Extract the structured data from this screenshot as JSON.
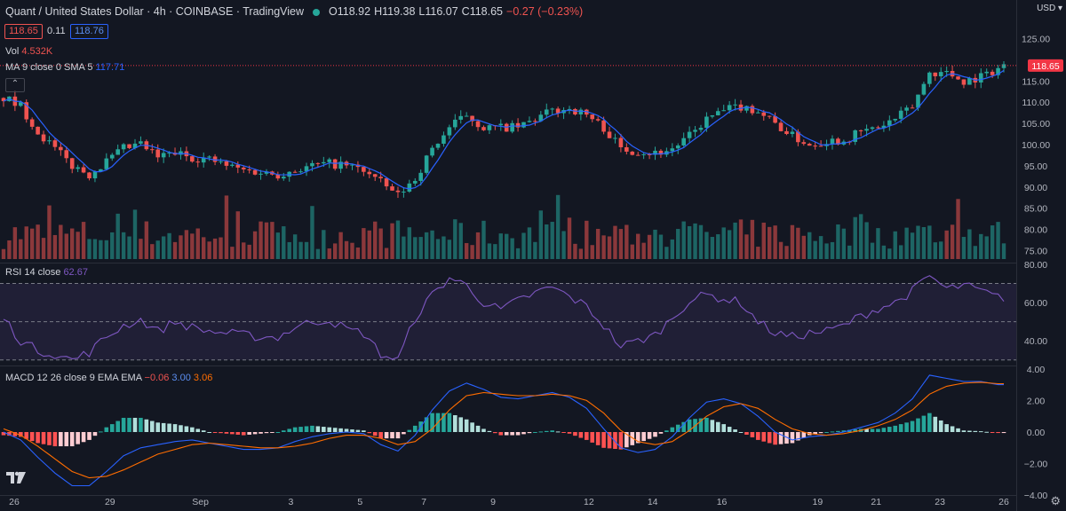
{
  "header": {
    "symbol": "Quant / United States Dollar · 4h · COINBASE · TradingView",
    "open": "O118.92",
    "high": "H119.38",
    "low": "L116.07",
    "close": "C118.65",
    "change": "−0.27 (−0.23%)",
    "bid": "118.65",
    "spread": "0.11",
    "ask": "118.76"
  },
  "indicators": {
    "vol_label": "Vol",
    "vol_value": "4.532K",
    "ma_label": "MA 9 close 0 SMA 5",
    "ma_value": "117.71",
    "rsi_label": "RSI 14 close",
    "rsi_value": "62.67",
    "macd_label": "MACD 12 26 close 9 EMA EMA",
    "macd_hist": "−0.06",
    "macd_line": "3.00",
    "macd_signal": "3.06"
  },
  "currency": "USD",
  "colors": {
    "up": "#26a69a",
    "down": "#ef5350",
    "ma": "#2962ff",
    "rsi": "#7e57c2",
    "macd": "#2962ff",
    "signal": "#ff6d00",
    "price_tag": "#f23645"
  },
  "chart_data": [
    {
      "type": "candlestick",
      "ylim": [
        73,
        127
      ],
      "price_ticks": [
        "125.00",
        "120.00",
        "115.00",
        "110.00",
        "105.00",
        "100.00",
        "95.00",
        "90.00",
        "85.00",
        "80.00",
        "75.00"
      ],
      "current_price": "118.65",
      "x_ticks": [
        "26",
        "29",
        "Sep",
        "3",
        "5",
        "7",
        "9",
        "12",
        "14",
        "16",
        "19",
        "21",
        "23",
        "26"
      ],
      "anchors": [
        [
          0,
          111
        ],
        [
          3,
          109
        ],
        [
          6,
          103
        ],
        [
          9,
          99
        ],
        [
          12,
          95
        ],
        [
          15,
          93
        ],
        [
          18,
          96
        ],
        [
          21,
          99
        ],
        [
          24,
          100
        ],
        [
          27,
          97
        ],
        [
          30,
          98
        ],
        [
          33,
          97
        ],
        [
          36,
          96.5
        ],
        [
          39,
          95
        ],
        [
          42,
          94
        ],
        [
          45,
          93.5
        ],
        [
          48,
          93
        ],
        [
          51,
          94
        ],
        [
          54,
          95
        ],
        [
          57,
          95.5
        ],
        [
          60,
          95
        ],
        [
          63,
          94
        ],
        [
          66,
          91
        ],
        [
          69,
          88
        ],
        [
          72,
          92
        ],
        [
          75,
          99
        ],
        [
          78,
          104
        ],
        [
          81,
          107
        ],
        [
          84,
          104
        ],
        [
          87,
          104
        ],
        [
          90,
          104
        ],
        [
          93,
          106
        ],
        [
          96,
          108
        ],
        [
          99,
          108.5
        ],
        [
          102,
          107
        ],
        [
          105,
          104
        ],
        [
          108,
          99
        ],
        [
          111,
          98.5
        ],
        [
          114,
          98
        ],
        [
          117,
          99
        ],
        [
          120,
          102
        ],
        [
          123,
          106
        ],
        [
          126,
          108
        ],
        [
          129,
          109
        ],
        [
          132,
          108
        ],
        [
          135,
          105
        ],
        [
          138,
          102
        ],
        [
          141,
          100
        ],
        [
          144,
          101
        ],
        [
          147,
          101
        ],
        [
          150,
          103
        ],
        [
          153,
          104
        ],
        [
          156,
          106
        ],
        [
          159,
          109
        ],
        [
          162,
          117
        ],
        [
          165,
          117
        ],
        [
          168,
          115
        ],
        [
          171,
          116
        ],
        [
          174,
          118
        ],
        [
          175,
          118.65
        ]
      ],
      "volume_ylim": [
        0,
        10
      ]
    },
    {
      "type": "line",
      "name": "RSI",
      "ylim": [
        28,
        80
      ],
      "ticks": [
        "80.00",
        "60.00",
        "40.00"
      ],
      "bands": [
        70,
        50,
        30
      ],
      "anchors": [
        [
          0,
          52
        ],
        [
          3,
          40
        ],
        [
          6,
          35
        ],
        [
          9,
          33
        ],
        [
          12,
          30
        ],
        [
          15,
          34
        ],
        [
          18,
          42
        ],
        [
          21,
          48
        ],
        [
          24,
          51
        ],
        [
          27,
          45
        ],
        [
          30,
          50
        ],
        [
          33,
          47
        ],
        [
          36,
          45
        ],
        [
          39,
          44
        ],
        [
          42,
          43
        ],
        [
          45,
          42
        ],
        [
          48,
          42
        ],
        [
          51,
          47
        ],
        [
          54,
          50
        ],
        [
          57,
          51
        ],
        [
          60,
          46
        ],
        [
          63,
          44
        ],
        [
          66,
          33
        ],
        [
          69,
          30
        ],
        [
          72,
          52
        ],
        [
          75,
          64
        ],
        [
          78,
          73
        ],
        [
          81,
          69
        ],
        [
          84,
          60
        ],
        [
          87,
          56
        ],
        [
          90,
          61
        ],
        [
          93,
          65
        ],
        [
          96,
          68
        ],
        [
          99,
          63
        ],
        [
          102,
          58
        ],
        [
          105,
          48
        ],
        [
          108,
          37
        ],
        [
          111,
          40
        ],
        [
          114,
          43
        ],
        [
          117,
          52
        ],
        [
          120,
          61
        ],
        [
          123,
          64
        ],
        [
          126,
          62
        ],
        [
          129,
          60
        ],
        [
          132,
          50
        ],
        [
          135,
          44
        ],
        [
          138,
          42
        ],
        [
          141,
          44
        ],
        [
          144,
          45
        ],
        [
          147,
          48
        ],
        [
          150,
          53
        ],
        [
          153,
          57
        ],
        [
          156,
          60
        ],
        [
          159,
          66
        ],
        [
          162,
          74
        ],
        [
          165,
          67
        ],
        [
          168,
          69
        ],
        [
          171,
          66
        ],
        [
          174,
          62.67
        ],
        [
          175,
          62.67
        ]
      ]
    },
    {
      "type": "macd",
      "ylim": [
        -4.1,
        4.1
      ],
      "ticks": [
        "4.00",
        "2.00",
        "0.00",
        "−2.00",
        "−4.00"
      ],
      "macd": [
        [
          0,
          0
        ],
        [
          3,
          -0.5
        ],
        [
          6,
          -1.6
        ],
        [
          9,
          -2.6
        ],
        [
          12,
          -3.4
        ],
        [
          15,
          -3.4
        ],
        [
          18,
          -2.5
        ],
        [
          21,
          -1.5
        ],
        [
          24,
          -1
        ],
        [
          27,
          -0.8
        ],
        [
          30,
          -0.6
        ],
        [
          33,
          -0.5
        ],
        [
          36,
          -0.7
        ],
        [
          39,
          -0.9
        ],
        [
          42,
          -1.1
        ],
        [
          45,
          -1.1
        ],
        [
          48,
          -1
        ],
        [
          51,
          -0.6
        ],
        [
          54,
          -0.3
        ],
        [
          57,
          -0.1
        ],
        [
          60,
          0
        ],
        [
          63,
          -0.1
        ],
        [
          66,
          -0.8
        ],
        [
          69,
          -1.2
        ],
        [
          72,
          -0.2
        ],
        [
          75,
          1.4
        ],
        [
          78,
          2.6
        ],
        [
          81,
          3.1
        ],
        [
          84,
          2.7
        ],
        [
          87,
          2.2
        ],
        [
          90,
          2.1
        ],
        [
          93,
          2.3
        ],
        [
          96,
          2.5
        ],
        [
          99,
          2.2
        ],
        [
          102,
          1.5
        ],
        [
          105,
          0.2
        ],
        [
          108,
          -1
        ],
        [
          111,
          -1.3
        ],
        [
          114,
          -1.1
        ],
        [
          117,
          -0.3
        ],
        [
          120,
          0.9
        ],
        [
          123,
          1.9
        ],
        [
          126,
          2.1
        ],
        [
          129,
          1.8
        ],
        [
          132,
          1
        ],
        [
          135,
          0
        ],
        [
          138,
          -0.5
        ],
        [
          141,
          -0.3
        ],
        [
          144,
          -0.2
        ],
        [
          147,
          0
        ],
        [
          150,
          0.3
        ],
        [
          153,
          0.6
        ],
        [
          156,
          1.2
        ],
        [
          159,
          2.1
        ],
        [
          162,
          3.6
        ],
        [
          165,
          3.4
        ],
        [
          168,
          3.2
        ],
        [
          171,
          3.2
        ],
        [
          174,
          3
        ],
        [
          175,
          3
        ]
      ],
      "signal": [
        [
          0,
          0.2
        ],
        [
          3,
          -0.2
        ],
        [
          6,
          -0.9
        ],
        [
          9,
          -1.7
        ],
        [
          12,
          -2.5
        ],
        [
          15,
          -2.9
        ],
        [
          18,
          -2.8
        ],
        [
          21,
          -2.4
        ],
        [
          24,
          -1.9
        ],
        [
          27,
          -1.4
        ],
        [
          30,
          -1.1
        ],
        [
          33,
          -0.8
        ],
        [
          36,
          -0.7
        ],
        [
          39,
          -0.8
        ],
        [
          42,
          -0.9
        ],
        [
          45,
          -1
        ],
        [
          48,
          -1
        ],
        [
          51,
          -0.9
        ],
        [
          54,
          -0.7
        ],
        [
          57,
          -0.4
        ],
        [
          60,
          -0.2
        ],
        [
          63,
          -0.2
        ],
        [
          66,
          -0.4
        ],
        [
          69,
          -0.8
        ],
        [
          72,
          -0.6
        ],
        [
          75,
          0.2
        ],
        [
          78,
          1.4
        ],
        [
          81,
          2.3
        ],
        [
          84,
          2.5
        ],
        [
          87,
          2.4
        ],
        [
          90,
          2.3
        ],
        [
          93,
          2.3
        ],
        [
          96,
          2.4
        ],
        [
          99,
          2.3
        ],
        [
          102,
          2
        ],
        [
          105,
          1.2
        ],
        [
          108,
          0.1
        ],
        [
          111,
          -0.6
        ],
        [
          114,
          -0.8
        ],
        [
          117,
          -0.6
        ],
        [
          120,
          0.1
        ],
        [
          123,
          1
        ],
        [
          126,
          1.6
        ],
        [
          129,
          1.8
        ],
        [
          132,
          1.5
        ],
        [
          135,
          0.8
        ],
        [
          138,
          0.2
        ],
        [
          141,
          -0.1
        ],
        [
          144,
          -0.2
        ],
        [
          147,
          -0.1
        ],
        [
          150,
          0.1
        ],
        [
          153,
          0.4
        ],
        [
          156,
          0.8
        ],
        [
          159,
          1.4
        ],
        [
          162,
          2.4
        ],
        [
          165,
          2.9
        ],
        [
          168,
          3.1
        ],
        [
          171,
          3.15
        ],
        [
          174,
          3.06
        ],
        [
          175,
          3.06
        ]
      ]
    }
  ]
}
